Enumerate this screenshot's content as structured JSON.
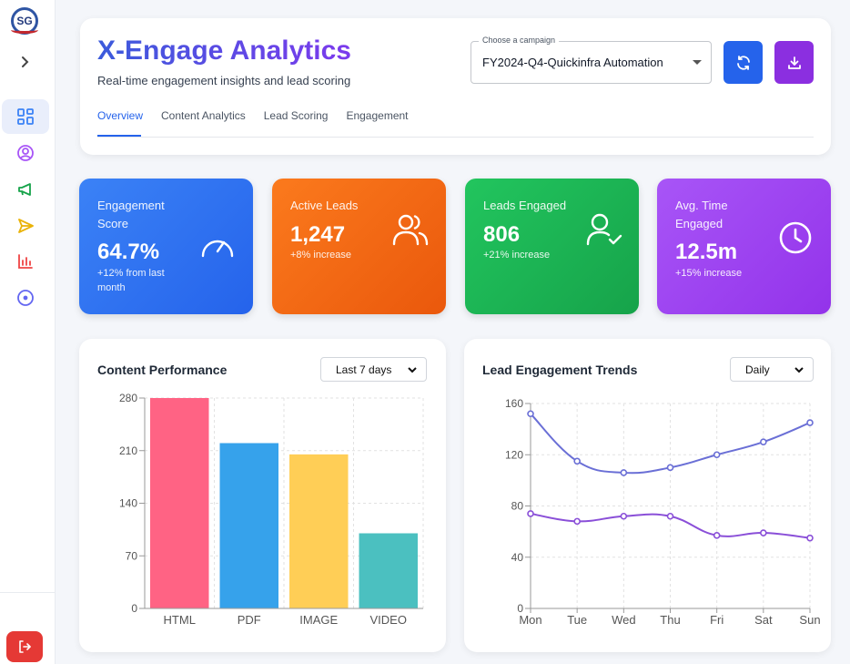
{
  "sidebar": {
    "logo_text": "SG",
    "items": [
      {
        "icon": "dashboard-icon",
        "color": "#3b82f6",
        "active": true
      },
      {
        "icon": "user-circle-icon",
        "color": "#a855f7"
      },
      {
        "icon": "megaphone-icon",
        "color": "#16a34a"
      },
      {
        "icon": "send-icon",
        "color": "#eab308"
      },
      {
        "icon": "bar-chart-icon",
        "color": "#ef4444"
      },
      {
        "icon": "target-icon",
        "color": "#6366f1"
      }
    ],
    "logout_icon": "logout-icon"
  },
  "header": {
    "title": "X-Engage Analytics",
    "subtitle": "Real-time engagement insights and lead scoring",
    "campaign_label": "Choose a campaign",
    "campaign_value": "FY2024-Q4-Quickinfra Automation",
    "refresh_icon": "refresh-icon",
    "download_icon": "download-icon",
    "tabs": [
      {
        "label": "Overview",
        "active": true
      },
      {
        "label": "Content Analytics"
      },
      {
        "label": "Lead Scoring"
      },
      {
        "label": "Engagement"
      }
    ]
  },
  "stats": [
    {
      "label": "Engagement Score",
      "value": "64.7%",
      "change": "+12% from last month",
      "icon": "speedometer-icon"
    },
    {
      "label": "Active Leads",
      "value": "1,247",
      "change": "+8% increase",
      "icon": "users-icon"
    },
    {
      "label": "Leads Engaged",
      "value": "806",
      "change": "+21% increase",
      "icon": "user-check-icon"
    },
    {
      "label": "Avg. Time Engaged",
      "value": "12.5m",
      "change": "+15% increase",
      "icon": "clock-icon"
    }
  ],
  "content_performance": {
    "title": "Content Performance",
    "filter": "Last 7 days"
  },
  "lead_trends": {
    "title": "Lead Engagement Trends",
    "filter": "Daily"
  },
  "chart_data": [
    {
      "type": "bar",
      "title": "Content Performance",
      "categories": [
        "HTML",
        "PDF",
        "IMAGE",
        "VIDEO"
      ],
      "values": [
        285,
        220,
        205,
        100
      ],
      "colors": [
        "#ff6384",
        "#36a2eb",
        "#ffce56",
        "#4bc0c0"
      ],
      "ylim": [
        0,
        280
      ],
      "yticks": [
        0,
        70,
        140,
        210,
        280
      ],
      "grid": true
    },
    {
      "type": "line",
      "title": "Lead Engagement Trends",
      "categories": [
        "Mon",
        "Tue",
        "Wed",
        "Thu",
        "Fri",
        "Sat",
        "Sun"
      ],
      "series": [
        {
          "values": [
            152,
            115,
            106,
            110,
            120,
            130,
            145
          ],
          "color": "#6a6fd6"
        },
        {
          "values": [
            74,
            68,
            72,
            72,
            57,
            59,
            55
          ],
          "color": "#8a4fd8"
        }
      ],
      "ylim": [
        0,
        160
      ],
      "yticks": [
        0,
        40,
        80,
        120,
        160
      ],
      "grid": true
    }
  ]
}
